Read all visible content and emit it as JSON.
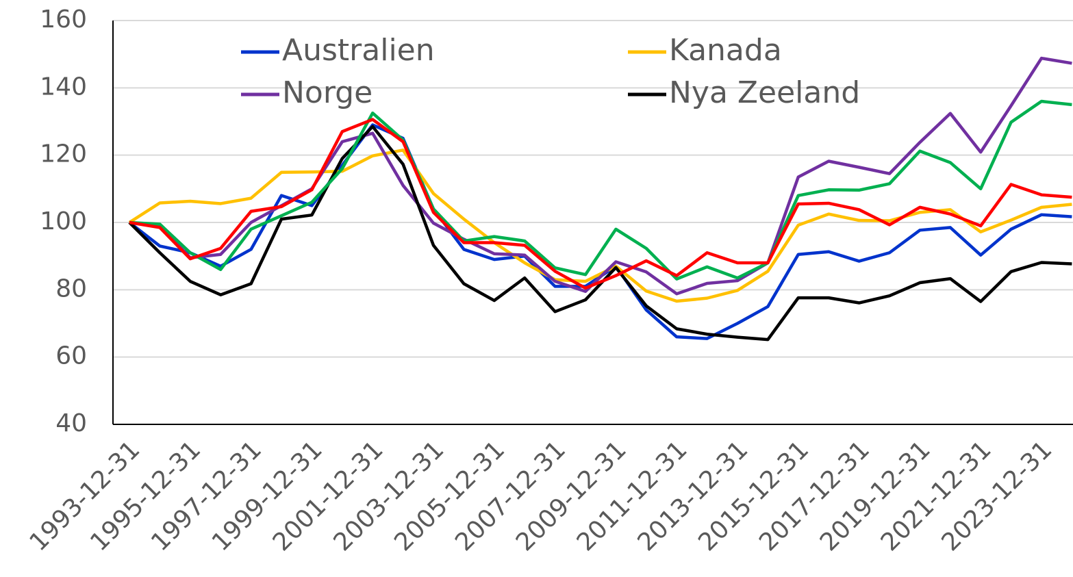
{
  "chart_data": {
    "type": "line",
    "categories": [
      "1993-12-31",
      null,
      "1995-12-31",
      null,
      "1997-12-31",
      null,
      "1999-12-31",
      null,
      "2001-12-31",
      null,
      "2003-12-31",
      null,
      "2005-12-31",
      null,
      "2007-12-31",
      null,
      "2009-12-31",
      null,
      "2011-12-31",
      null,
      "2013-12-31",
      null,
      "2015-12-31",
      null,
      "2017-12-31",
      null,
      "2019-12-31",
      null,
      "2021-12-31",
      null,
      "2023-12-31",
      null
    ],
    "series": [
      {
        "name": "Australien",
        "color": "#0033cc",
        "values": [
          100,
          93,
          91,
          87,
          92,
          108,
          105,
          117,
          129,
          125,
          104,
          92,
          89,
          90,
          81,
          81,
          87,
          74,
          66,
          65.5,
          70,
          75,
          90.5,
          91.3,
          88.5,
          91,
          97.7,
          98.5,
          90.3,
          98,
          102.3,
          101.7
        ]
      },
      {
        "name": "Kanada",
        "color": "#ffc000",
        "values": [
          100,
          105.8,
          106.3,
          105.6,
          107.2,
          114.9,
          115,
          115.2,
          119.8,
          121.5,
          108.6,
          101,
          94,
          88,
          83,
          82.5,
          87,
          79.6,
          76.6,
          77.5,
          79.8,
          85.5,
          99.2,
          102.5,
          100.6,
          100.5,
          103,
          103.8,
          97.2,
          100.7,
          104.5,
          105.4
        ]
      },
      {
        "name": "Norge",
        "color": "#7030a0",
        "values": [
          100,
          99,
          89.5,
          90.5,
          100,
          105,
          110,
          124,
          126.5,
          111,
          99.8,
          95,
          90.7,
          90.3,
          82.5,
          79.5,
          88.3,
          85.3,
          78.8,
          81.9,
          82.7,
          88,
          113.5,
          118.2,
          116.4,
          114.5,
          123.8,
          132.4,
          120.9,
          134.7,
          148.8,
          147.3
        ]
      },
      {
        "name": "Nya Zeeland",
        "color": "#000000",
        "values": [
          100,
          91,
          82.5,
          78.5,
          81.8,
          101,
          102.2,
          119,
          128.5,
          117.3,
          93.2,
          81.8,
          76.8,
          83.5,
          73.5,
          77,
          86.6,
          75.2,
          68.4,
          66.8,
          65.9,
          65.2,
          77.6,
          77.6,
          76.1,
          78.2,
          82.1,
          83.3,
          76.5,
          85.4,
          88.1,
          87.7
        ]
      },
      {
        "color": "#00b050",
        "values": [
          100,
          99.5,
          91,
          86,
          98,
          102,
          106,
          116,
          132.5,
          124.5,
          104,
          94.5,
          95.8,
          94.5,
          86.5,
          84.5,
          98,
          92.3,
          83.2,
          86.8,
          83.5,
          88,
          108,
          109.7,
          109.6,
          111.5,
          121.2,
          117.8,
          110,
          129.8,
          136,
          135
        ]
      },
      {
        "color": "#ff0000",
        "values": [
          100,
          98.5,
          89.2,
          92.3,
          103.3,
          104.7,
          109.7,
          127,
          130.6,
          124,
          103,
          94,
          94,
          93.2,
          85.5,
          80.5,
          84.2,
          88.6,
          84.2,
          91,
          88,
          88,
          105.5,
          105.7,
          103.8,
          99.3,
          104.5,
          102.5,
          99,
          111.3,
          108.2,
          107.5
        ]
      }
    ],
    "ylim": [
      40,
      160
    ],
    "yticks": [
      40,
      60,
      80,
      100,
      120,
      140,
      160
    ],
    "grid": true
  }
}
